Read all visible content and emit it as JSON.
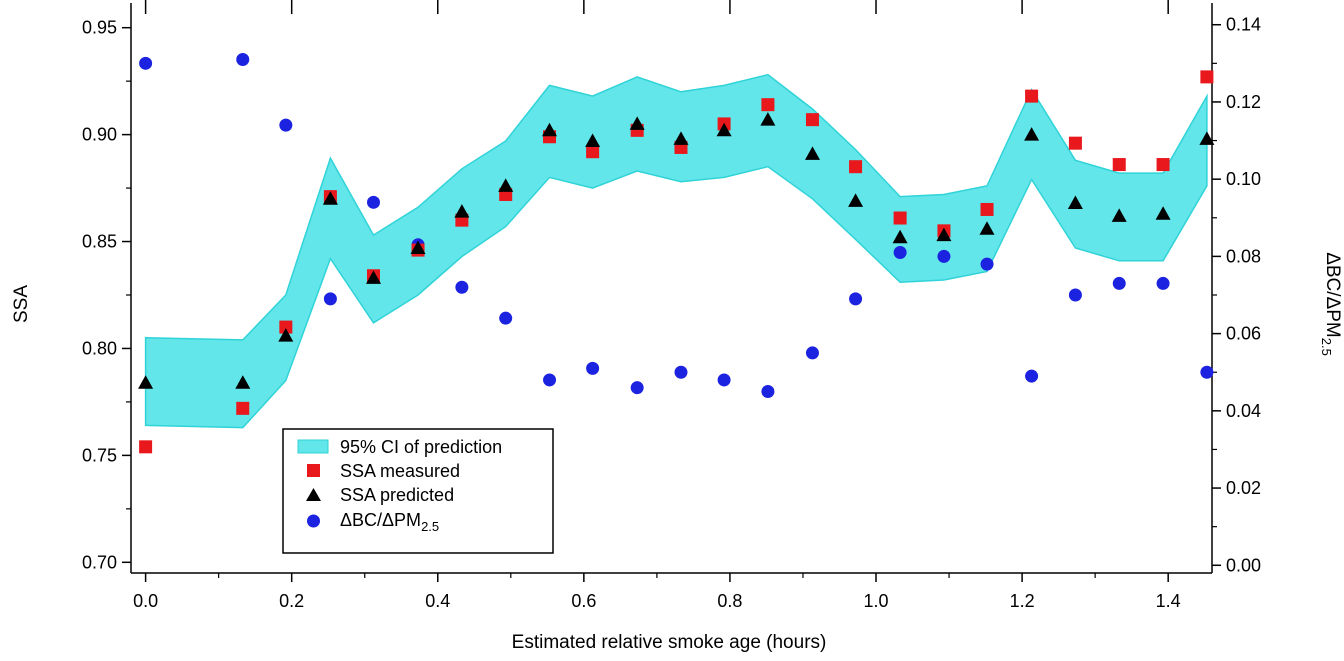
{
  "chart_data": {
    "type": "scatter",
    "xlabel": "Estimated relative smoke age (hours)",
    "ylabel_left": "SSA",
    "ylabel_right": "ΔBC/ΔPM",
    "ylabel_right_sub": "2.5",
    "xlim": [
      -0.02,
      1.46
    ],
    "ylim_left": [
      0.695,
      0.955
    ],
    "ylim_right": [
      -0.002,
      0.142
    ],
    "xticks": [
      "0.0",
      "0.2",
      "0.4",
      "0.6",
      "0.8",
      "1.0",
      "1.2",
      "1.4"
    ],
    "xtick_values": [
      0.0,
      0.2,
      0.4,
      0.6,
      0.8,
      1.0,
      1.2,
      1.4
    ],
    "yticks_left": [
      "0.70",
      "0.75",
      "0.80",
      "0.85",
      "0.90",
      "0.95"
    ],
    "ytick_values_left": [
      0.7,
      0.75,
      0.8,
      0.85,
      0.9,
      0.95
    ],
    "yticks_right": [
      "0.00",
      "0.02",
      "0.04",
      "0.06",
      "0.08",
      "0.10",
      "0.12",
      "0.14"
    ],
    "ytick_values_right": [
      0.0,
      0.02,
      0.04,
      0.06,
      0.08,
      0.1,
      0.12,
      0.14
    ],
    "legend": {
      "position": "lower-left",
      "entries": [
        {
          "label": "95% CI of prediction",
          "marker": "band"
        },
        {
          "label": "SSA measured",
          "marker": "square"
        },
        {
          "label": "SSA predicted",
          "marker": "triangle"
        },
        {
          "label": "ΔBC/ΔPM",
          "sub": "2.5",
          "marker": "circle"
        }
      ]
    },
    "colors": {
      "ci_fill": "#62e6e9",
      "ci_edge": "#2fd3d8",
      "measured": "#e8181c",
      "predicted": "#000000",
      "ratio": "#1b22e0"
    },
    "x": [
      0.0,
      0.133,
      0.192,
      0.253,
      0.312,
      0.373,
      0.433,
      0.493,
      0.553,
      0.612,
      0.673,
      0.733,
      0.792,
      0.852,
      0.913,
      0.972,
      1.033,
      1.093,
      1.152,
      1.213,
      1.273,
      1.333,
      1.393,
      1.453
    ],
    "series": [
      {
        "name": "95% CI of prediction",
        "axis": "left",
        "style": "band",
        "lower": [
          0.764,
          0.763,
          0.785,
          0.842,
          0.812,
          0.825,
          0.843,
          0.857,
          0.88,
          0.875,
          0.883,
          0.878,
          0.88,
          0.885,
          0.87,
          0.851,
          0.831,
          0.832,
          0.836,
          0.879,
          0.847,
          0.841,
          0.841,
          0.876
        ],
        "upper": [
          0.805,
          0.804,
          0.825,
          0.889,
          0.853,
          0.866,
          0.884,
          0.897,
          0.923,
          0.918,
          0.927,
          0.92,
          0.923,
          0.928,
          0.912,
          0.893,
          0.871,
          0.872,
          0.876,
          0.921,
          0.888,
          0.882,
          0.882,
          0.918
        ]
      },
      {
        "name": "SSA measured",
        "axis": "left",
        "marker": "square",
        "values": [
          0.754,
          0.772,
          0.81,
          0.871,
          0.834,
          0.846,
          0.86,
          0.872,
          0.899,
          0.892,
          0.902,
          0.894,
          0.905,
          0.914,
          0.907,
          0.885,
          0.861,
          0.855,
          0.865,
          0.918,
          0.896,
          0.886,
          0.886,
          0.927
        ]
      },
      {
        "name": "SSA predicted",
        "axis": "left",
        "marker": "triangle",
        "values": [
          0.784,
          0.784,
          0.806,
          0.87,
          0.833,
          0.847,
          0.864,
          0.876,
          0.902,
          0.897,
          0.905,
          0.898,
          0.902,
          0.907,
          0.891,
          0.869,
          0.852,
          0.853,
          0.856,
          0.9,
          0.868,
          0.862,
          0.863,
          0.898
        ]
      },
      {
        "name": "ΔBC/ΔPM2.5",
        "axis": "right",
        "marker": "circle",
        "values": [
          0.13,
          0.131,
          0.114,
          0.069,
          0.094,
          0.083,
          0.072,
          0.064,
          0.048,
          0.051,
          0.046,
          0.05,
          0.048,
          0.045,
          0.055,
          0.069,
          0.081,
          0.08,
          0.078,
          0.049,
          0.07,
          0.073,
          0.073,
          0.05
        ]
      }
    ]
  }
}
